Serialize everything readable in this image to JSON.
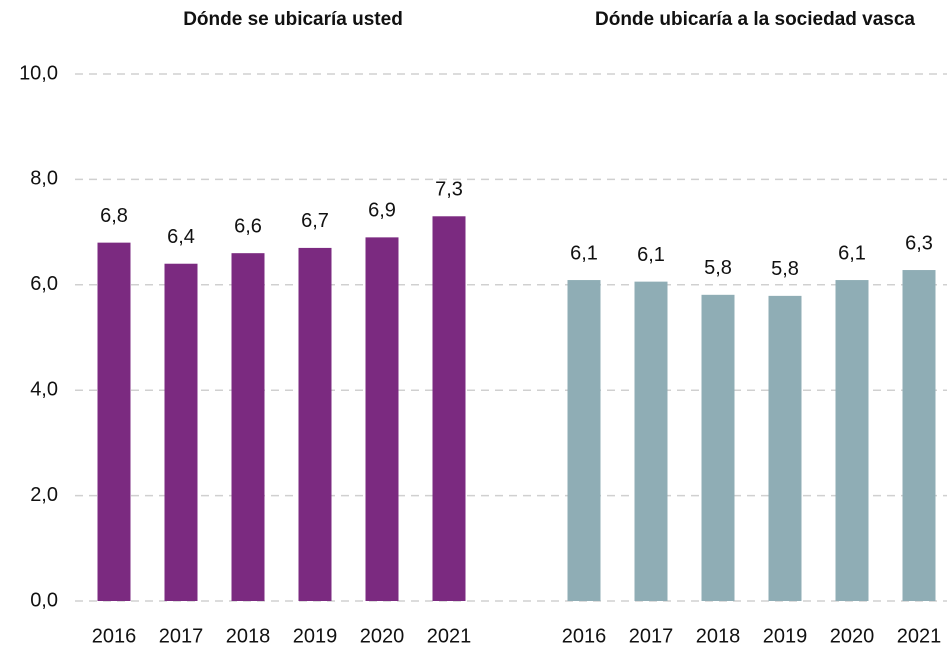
{
  "chart_data": [
    {
      "type": "bar",
      "title": "Dónde se ubicaría usted",
      "categories": [
        "2016",
        "2017",
        "2018",
        "2019",
        "2020",
        "2021"
      ],
      "values": [
        6.8,
        6.4,
        6.6,
        6.7,
        6.9,
        7.3
      ],
      "value_labels": [
        "6,8",
        "6,4",
        "6,6",
        "6,7",
        "6,9",
        "7,3"
      ],
      "color": "#7b2a80",
      "ylim": [
        0,
        10
      ],
      "yticks": [
        {
          "value": 0,
          "label": "0,0"
        },
        {
          "value": 2,
          "label": "2,0"
        },
        {
          "value": 4,
          "label": "4,0"
        },
        {
          "value": 6,
          "label": "6,0"
        },
        {
          "value": 8,
          "label": "8,0"
        },
        {
          "value": 10,
          "label": "10,0"
        }
      ],
      "grid": true
    },
    {
      "type": "bar",
      "title": "Dónde ubicaría a la sociedad vasca",
      "categories": [
        "2016",
        "2017",
        "2018",
        "2019",
        "2020",
        "2021"
      ],
      "values": [
        6.09,
        6.06,
        5.81,
        5.79,
        6.09,
        6.28
      ],
      "value_labels": [
        "6,1",
        "6,1",
        "5,8",
        "5,8",
        "6,1",
        "6,3"
      ],
      "color": "#8fadb5",
      "ylim": [
        0,
        10
      ]
    }
  ]
}
